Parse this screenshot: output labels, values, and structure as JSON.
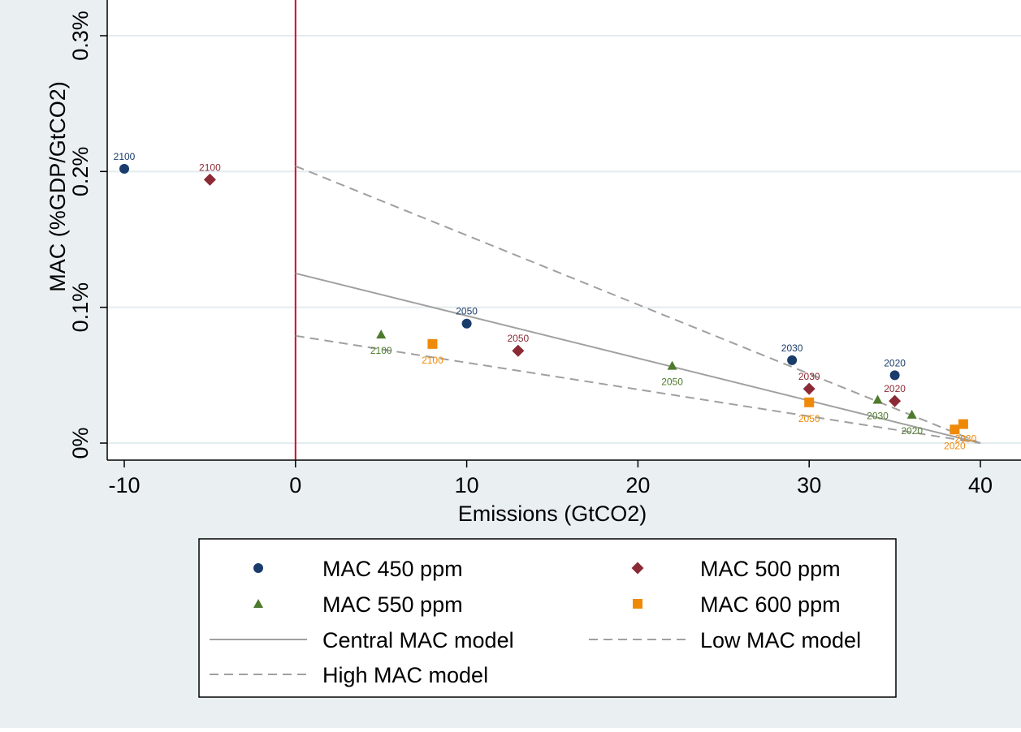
{
  "chart_data": {
    "type": "scatter",
    "xlabel": "Emissions (GtCO2)",
    "ylabel": "MAC (%GDP/GtCO2)",
    "xlim": [
      -11,
      41
    ],
    "ylim": [
      -0.0012,
      0.0031
    ],
    "x_ticks": [
      -10,
      0,
      10,
      20,
      30,
      40
    ],
    "x_tick_labels": [
      "-10",
      "0",
      "10",
      "20",
      "30",
      "40"
    ],
    "y_ticks": [
      0,
      0.001,
      0.002,
      0.003
    ],
    "y_tick_labels": [
      "0%",
      "0.1%",
      "0.2%",
      "0.3%"
    ],
    "grid": true,
    "reference_line": {
      "axis": "x",
      "value": 0,
      "color": "#c8102e"
    },
    "legend_position": "bottom",
    "colors": {
      "mac450": "#1a3c6b",
      "mac500": "#8b2a35",
      "mac550": "#4e7a2c",
      "mac600": "#ef8a08",
      "model_line": "#a0a0a0",
      "plot_background": "#ffffff",
      "outer_background": "#eaf0f2",
      "gridline": "#e3ecee"
    },
    "series": [
      {
        "name": "MAC 450 ppm",
        "marker": "circle",
        "color": "#1a3c6b",
        "points": [
          {
            "x": -10,
            "y": 0.00202,
            "label": "2100",
            "label_pos": "above"
          },
          {
            "x": 10,
            "y": 0.00088,
            "label": "2050",
            "label_pos": "above"
          },
          {
            "x": 29,
            "y": 0.00061,
            "label": "2030",
            "label_pos": "above"
          },
          {
            "x": 35,
            "y": 0.0005,
            "label": "2020",
            "label_pos": "above"
          }
        ]
      },
      {
        "name": "MAC 500 ppm",
        "marker": "diamond",
        "color": "#8b2a35",
        "points": [
          {
            "x": -5,
            "y": 0.00194,
            "label": "2100",
            "label_pos": "above"
          },
          {
            "x": 13,
            "y": 0.00068,
            "label": "2050",
            "label_pos": "above"
          },
          {
            "x": 30,
            "y": 0.0004,
            "label": "2030",
            "label_pos": "above"
          },
          {
            "x": 35,
            "y": 0.00031,
            "label": "2020",
            "label_pos": "above"
          }
        ]
      },
      {
        "name": "MAC 550 ppm",
        "marker": "triangle",
        "color": "#4e7a2c",
        "points": [
          {
            "x": 5,
            "y": 0.0008,
            "label": "2100",
            "label_pos": "below"
          },
          {
            "x": 22,
            "y": 0.00057,
            "label": "2050",
            "label_pos": "below"
          },
          {
            "x": 34,
            "y": 0.00032,
            "label": "2030",
            "label_pos": "below"
          },
          {
            "x": 36,
            "y": 0.00021,
            "label": "2020",
            "label_pos": "below"
          }
        ]
      },
      {
        "name": "MAC 600 ppm",
        "marker": "square",
        "color": "#ef8a08",
        "points": [
          {
            "x": 8,
            "y": 0.00073,
            "label": "2100",
            "label_pos": "below"
          },
          {
            "x": 30,
            "y": 0.0003,
            "label": "2050",
            "label_pos": "below"
          },
          {
            "x": 38.5,
            "y": 0.0001,
            "label": "2020",
            "label_pos": "below"
          },
          {
            "x": 39,
            "y": 0.00014,
            "label": "2030",
            "label_pos": "below-right"
          }
        ]
      }
    ],
    "lines": [
      {
        "name": "Central MAC model",
        "style": "solid",
        "color": "#a0a0a0",
        "points": [
          [
            0,
            0.00125
          ],
          [
            40,
            0
          ]
        ]
      },
      {
        "name": "Low MAC model",
        "style": "dashed",
        "color": "#a0a0a0",
        "points": [
          [
            0,
            0.00079
          ],
          [
            40,
            0
          ]
        ]
      },
      {
        "name": "High MAC model",
        "style": "dashed",
        "color": "#a0a0a0",
        "points": [
          [
            0,
            0.00204
          ],
          [
            40,
            0
          ]
        ]
      }
    ],
    "legend": [
      {
        "label": "MAC 450 ppm",
        "symbol": "circle",
        "color": "#1a3c6b"
      },
      {
        "label": "MAC 500 ppm",
        "symbol": "diamond",
        "color": "#8b2a35"
      },
      {
        "label": "MAC 550 ppm",
        "symbol": "triangle",
        "color": "#4e7a2c"
      },
      {
        "label": "MAC 600 ppm",
        "symbol": "square",
        "color": "#ef8a08"
      },
      {
        "label": "Central MAC model",
        "symbol": "solid-line",
        "color": "#a0a0a0"
      },
      {
        "label": "Low MAC model",
        "symbol": "dashed-line",
        "color": "#a0a0a0"
      },
      {
        "label": "High MAC model",
        "symbol": "dashed-line",
        "color": "#a0a0a0"
      }
    ]
  }
}
